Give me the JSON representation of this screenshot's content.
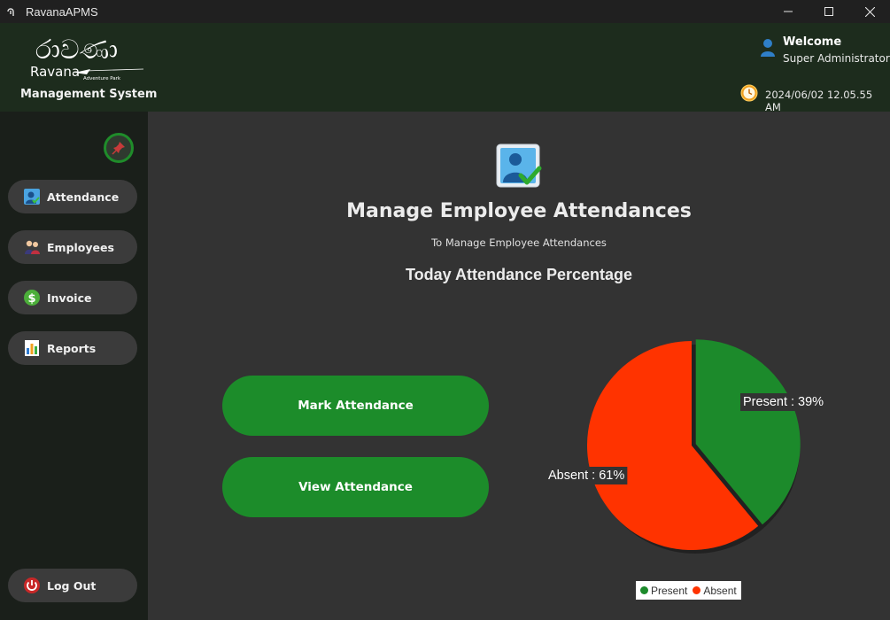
{
  "window": {
    "title": "RavanaAPMS"
  },
  "header": {
    "logo_text": "රාවණා",
    "logo_sub": "Ravana",
    "logo_tag": "Adventure Park",
    "system_title": "Management System",
    "welcome": "Welcome",
    "role": "Super Administrator",
    "datetime": "2024/06/02 12.05.55 AM"
  },
  "sidebar": {
    "items": [
      {
        "label": "Attendance",
        "icon": "attendance-icon"
      },
      {
        "label": "Employees",
        "icon": "employees-icon"
      },
      {
        "label": "Invoice",
        "icon": "dollar-icon"
      },
      {
        "label": "Reports",
        "icon": "reports-icon"
      }
    ],
    "logout": "Log Out"
  },
  "main": {
    "title": "Manage Employee Attendances",
    "subtitle": "To Manage Employee Attendances",
    "section_title": "Today Attendance Percentage",
    "mark_button": "Mark Attendance",
    "view_button": "View Attendance"
  },
  "colors": {
    "present": "#1c8a2b",
    "absent": "#ff3300",
    "accent": "#1c8c2a"
  },
  "chart_data": {
    "type": "pie",
    "categories": [
      "Present",
      "Absent"
    ],
    "values": [
      39,
      61
    ],
    "labels": [
      "Present : 39%",
      "Absent : 61%"
    ],
    "legend": [
      "Present",
      "Absent"
    ],
    "legend_position": "bottom"
  }
}
